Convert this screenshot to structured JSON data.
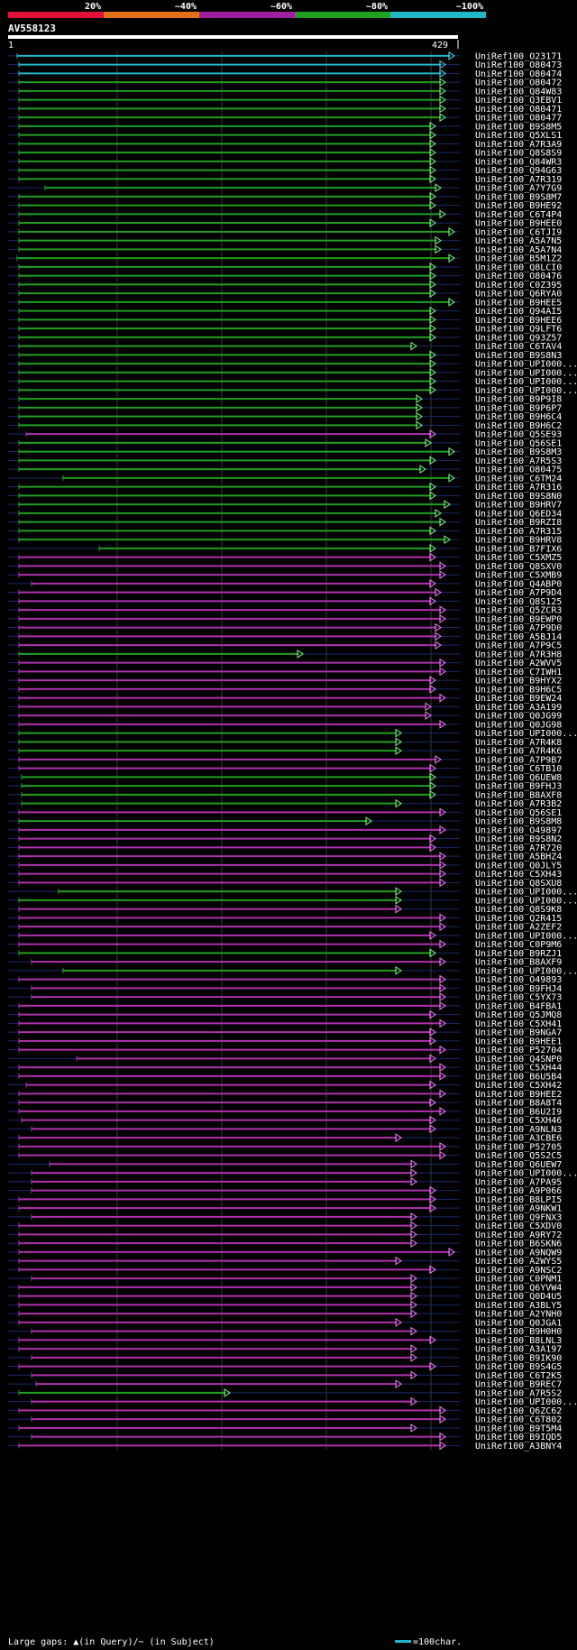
{
  "query": {
    "id": "AV558123",
    "start": "1",
    "end": "429",
    "length": 429
  },
  "chart_data": {
    "type": "alignment-overview",
    "identity_scale": {
      "labels": [
        "20%",
        "~40%",
        "~60%",
        "~80%",
        "~100%"
      ],
      "colors": [
        "#e0103a",
        "#e0701a",
        "#a020a0",
        "#20a020",
        "#20b8c8"
      ]
    },
    "legend": {
      "gaps_text": "Large gaps: ▲(in Query)/~ (in Subject)",
      "scale_text": "=100char.",
      "scale_color": "#20b8c8"
    },
    "hits": [
      {
        "id": "UniRef100_O23171",
        "s": 19,
        "e": 499,
        "c": "c"
      },
      {
        "id": "UniRef100_O80473",
        "s": 21,
        "e": 489,
        "c": "c"
      },
      {
        "id": "UniRef100_O80474",
        "s": 21,
        "e": 489,
        "c": "c"
      },
      {
        "id": "UniRef100_O80472",
        "s": 21,
        "e": 489,
        "c": "g"
      },
      {
        "id": "UniRef100_Q84W83",
        "s": 21,
        "e": 489,
        "c": "g"
      },
      {
        "id": "UniRef100_Q3EBV1",
        "s": 21,
        "e": 489,
        "c": "g"
      },
      {
        "id": "UniRef100_O80471",
        "s": 21,
        "e": 489,
        "c": "g"
      },
      {
        "id": "UniRef100_O80477",
        "s": 21,
        "e": 489,
        "c": "g"
      },
      {
        "id": "UniRef100_B9S8M5",
        "s": 21,
        "e": 478,
        "c": "g"
      },
      {
        "id": "UniRef100_Q5XLS1",
        "s": 21,
        "e": 478,
        "c": "g"
      },
      {
        "id": "UniRef100_A7R3A9",
        "s": 21,
        "e": 478,
        "c": "g"
      },
      {
        "id": "UniRef100_Q8S8S9",
        "s": 21,
        "e": 478,
        "c": "g"
      },
      {
        "id": "UniRef100_Q84WR3",
        "s": 21,
        "e": 478,
        "c": "g"
      },
      {
        "id": "UniRef100_Q94G63",
        "s": 21,
        "e": 478,
        "c": "g"
      },
      {
        "id": "UniRef100_A7R319",
        "s": 21,
        "e": 478,
        "c": "g"
      },
      {
        "id": "UniRef100_A7Y7G9",
        "s": 50,
        "e": 484,
        "c": "g"
      },
      {
        "id": "UniRef100_B9S8M7",
        "s": 21,
        "e": 478,
        "c": "g"
      },
      {
        "id": "UniRef100_B9HE92",
        "s": 21,
        "e": 478,
        "c": "g"
      },
      {
        "id": "UniRef100_C6T4P4",
        "s": 21,
        "e": 489,
        "c": "g"
      },
      {
        "id": "UniRef100_B9HEE0",
        "s": 21,
        "e": 478,
        "c": "g"
      },
      {
        "id": "UniRef100_C6TJI9",
        "s": 21,
        "e": 499,
        "c": "g"
      },
      {
        "id": "UniRef100_A5A7N5",
        "s": 21,
        "e": 484,
        "c": "g"
      },
      {
        "id": "UniRef100_A5A7N4",
        "s": 21,
        "e": 484,
        "c": "g"
      },
      {
        "id": "UniRef100_B5M1Z2",
        "s": 19,
        "e": 499,
        "c": "g"
      },
      {
        "id": "UniRef100_Q8LCI0",
        "s": 21,
        "e": 478,
        "c": "g"
      },
      {
        "id": "UniRef100_O80476",
        "s": 21,
        "e": 478,
        "c": "g"
      },
      {
        "id": "UniRef100_C0Z395",
        "s": 21,
        "e": 478,
        "c": "g"
      },
      {
        "id": "UniRef100_Q6RYA0",
        "s": 21,
        "e": 478,
        "c": "g"
      },
      {
        "id": "UniRef100_B9HEE5",
        "s": 21,
        "e": 499,
        "c": "g"
      },
      {
        "id": "UniRef100_Q94AI5",
        "s": 21,
        "e": 478,
        "c": "g"
      },
      {
        "id": "UniRef100_B9HEE6",
        "s": 21,
        "e": 478,
        "c": "g"
      },
      {
        "id": "UniRef100_Q9LFT6",
        "s": 21,
        "e": 478,
        "c": "g"
      },
      {
        "id": "UniRef100_Q93Z57",
        "s": 21,
        "e": 478,
        "c": "g"
      },
      {
        "id": "UniRef100_C6TAV4",
        "s": 21,
        "e": 457,
        "c": "g"
      },
      {
        "id": "UniRef100_B9S8N3",
        "s": 21,
        "e": 478,
        "c": "g"
      },
      {
        "id": "UniRef100_UPI000...",
        "s": 21,
        "e": 478,
        "c": "g"
      },
      {
        "id": "UniRef100_UPI000...",
        "s": 21,
        "e": 478,
        "c": "g"
      },
      {
        "id": "UniRef100_UPI000...",
        "s": 21,
        "e": 478,
        "c": "g"
      },
      {
        "id": "UniRef100_UPI000...",
        "s": 21,
        "e": 478,
        "c": "g"
      },
      {
        "id": "UniRef100_B9P9I8",
        "s": 21,
        "e": 463,
        "c": "g"
      },
      {
        "id": "UniRef100_B9P6P7",
        "s": 21,
        "e": 463,
        "c": "g"
      },
      {
        "id": "UniRef100_B9H6C4",
        "s": 21,
        "e": 463,
        "c": "g"
      },
      {
        "id": "UniRef100_B9H6C2",
        "s": 21,
        "e": 463,
        "c": "g"
      },
      {
        "id": "UniRef100_Q5SE93",
        "s": 29,
        "e": 478,
        "c": "p"
      },
      {
        "id": "UniRef100_Q56SE1",
        "s": 21,
        "e": 473,
        "c": "g"
      },
      {
        "id": "UniRef100_B9S8M3",
        "s": 21,
        "e": 499,
        "c": "g"
      },
      {
        "id": "UniRef100_A7R5S3",
        "s": 21,
        "e": 478,
        "c": "g"
      },
      {
        "id": "UniRef100_O80475",
        "s": 21,
        "e": 467,
        "c": "g"
      },
      {
        "id": "UniRef100_C6TM24",
        "s": 70,
        "e": 499,
        "c": "g"
      },
      {
        "id": "UniRef100_A7R316",
        "s": 21,
        "e": 478,
        "c": "g"
      },
      {
        "id": "UniRef100_B9S8N0",
        "s": 21,
        "e": 478,
        "c": "g"
      },
      {
        "id": "UniRef100_B9HRV7",
        "s": 21,
        "e": 494,
        "c": "g"
      },
      {
        "id": "UniRef100_Q6ED34",
        "s": 21,
        "e": 484,
        "c": "g"
      },
      {
        "id": "UniRef100_B9RZI8",
        "s": 21,
        "e": 489,
        "c": "g"
      },
      {
        "id": "UniRef100_A7R315",
        "s": 21,
        "e": 478,
        "c": "g"
      },
      {
        "id": "UniRef100_B9HRV8",
        "s": 21,
        "e": 494,
        "c": "g"
      },
      {
        "id": "UniRef100_B7FIX6",
        "s": 110,
        "e": 478,
        "c": "g"
      },
      {
        "id": "UniRef100_C5XMZ5",
        "s": 21,
        "e": 478,
        "c": "p"
      },
      {
        "id": "UniRef100_Q8SXV0",
        "s": 21,
        "e": 489,
        "c": "p"
      },
      {
        "id": "UniRef100_C5XMB9",
        "s": 21,
        "e": 489,
        "c": "p"
      },
      {
        "id": "UniRef100_Q4ABP0",
        "s": 35,
        "e": 478,
        "c": "p"
      },
      {
        "id": "UniRef100_A7P9D4",
        "s": 21,
        "e": 484,
        "c": "p"
      },
      {
        "id": "UniRef100_Q8S125",
        "s": 21,
        "e": 478,
        "c": "p"
      },
      {
        "id": "UniRef100_Q5ZCR3",
        "s": 21,
        "e": 489,
        "c": "p"
      },
      {
        "id": "UniRef100_B9EWP0",
        "s": 21,
        "e": 489,
        "c": "p"
      },
      {
        "id": "UniRef100_A7P9D0",
        "s": 21,
        "e": 484,
        "c": "p"
      },
      {
        "id": "UniRef100_A5BJ14",
        "s": 21,
        "e": 484,
        "c": "p"
      },
      {
        "id": "UniRef100_A7P9C5",
        "s": 21,
        "e": 484,
        "c": "p"
      },
      {
        "id": "UniRef100_A7R3H8",
        "s": 21,
        "e": 331,
        "c": "g"
      },
      {
        "id": "UniRef100_A2WVV5",
        "s": 21,
        "e": 489,
        "c": "p"
      },
      {
        "id": "UniRef100_C7IWH1",
        "s": 21,
        "e": 489,
        "c": "p"
      },
      {
        "id": "UniRef100_B9HYX2",
        "s": 21,
        "e": 478,
        "c": "p"
      },
      {
        "id": "UniRef100_B9H6C5",
        "s": 21,
        "e": 478,
        "c": "p"
      },
      {
        "id": "UniRef100_B9EW24",
        "s": 21,
        "e": 489,
        "c": "p"
      },
      {
        "id": "UniRef100_A3A199",
        "s": 21,
        "e": 473,
        "c": "p"
      },
      {
        "id": "UniRef100_Q0JG99",
        "s": 21,
        "e": 473,
        "c": "p"
      },
      {
        "id": "UniRef100_Q0JG98",
        "s": 21,
        "e": 489,
        "c": "p"
      },
      {
        "id": "UniRef100_UPI000...",
        "s": 21,
        "e": 440,
        "c": "g"
      },
      {
        "id": "UniRef100_A7R4K8",
        "s": 21,
        "e": 440,
        "c": "g"
      },
      {
        "id": "UniRef100_A7R4K6",
        "s": 21,
        "e": 440,
        "c": "g"
      },
      {
        "id": "UniRef100_A7P9B7",
        "s": 21,
        "e": 484,
        "c": "p"
      },
      {
        "id": "UniRef100_C6TB10",
        "s": 21,
        "e": 478,
        "c": "p"
      },
      {
        "id": "UniRef100_Q6UEW8",
        "s": 24,
        "e": 478,
        "c": "g"
      },
      {
        "id": "UniRef100_B9FHJ3",
        "s": 24,
        "e": 478,
        "c": "g"
      },
      {
        "id": "UniRef100_B8AXF8",
        "s": 24,
        "e": 478,
        "c": "g"
      },
      {
        "id": "UniRef100_A7R3B2",
        "s": 24,
        "e": 440,
        "c": "g"
      },
      {
        "id": "UniRef100_Q56SE1",
        "s": 21,
        "e": 489,
        "c": "p"
      },
      {
        "id": "UniRef100_B9S8M8",
        "s": 21,
        "e": 407,
        "c": "g"
      },
      {
        "id": "UniRef100_O49897",
        "s": 21,
        "e": 489,
        "c": "p"
      },
      {
        "id": "UniRef100_B9S8N2",
        "s": 21,
        "e": 478,
        "c": "p"
      },
      {
        "id": "UniRef100_A7R720",
        "s": 21,
        "e": 478,
        "c": "p"
      },
      {
        "id": "UniRef100_A5BHZ4",
        "s": 21,
        "e": 489,
        "c": "p"
      },
      {
        "id": "UniRef100_Q0JLY5",
        "s": 21,
        "e": 489,
        "c": "p"
      },
      {
        "id": "UniRef100_C5XH43",
        "s": 21,
        "e": 489,
        "c": "p"
      },
      {
        "id": "UniRef100_Q8SXU8",
        "s": 21,
        "e": 489,
        "c": "p"
      },
      {
        "id": "UniRef100_UPI000...",
        "s": 65,
        "e": 440,
        "c": "g"
      },
      {
        "id": "UniRef100_UPI000...",
        "s": 21,
        "e": 440,
        "c": "g"
      },
      {
        "id": "UniRef100_Q8S9K8",
        "s": 21,
        "e": 440,
        "c": "p"
      },
      {
        "id": "UniRef100_Q2R415",
        "s": 21,
        "e": 489,
        "c": "p"
      },
      {
        "id": "UniRef100_A2ZEF2",
        "s": 21,
        "e": 489,
        "c": "p"
      },
      {
        "id": "UniRef100_UPI000...",
        "s": 21,
        "e": 478,
        "c": "p"
      },
      {
        "id": "UniRef100_C0P9M6",
        "s": 21,
        "e": 489,
        "c": "p"
      },
      {
        "id": "UniRef100_B9RZJ1",
        "s": 21,
        "e": 478,
        "c": "g"
      },
      {
        "id": "UniRef100_B8AXF9",
        "s": 35,
        "e": 489,
        "c": "p"
      },
      {
        "id": "UniRef100_UPI000...",
        "s": 70,
        "e": 440,
        "c": "g"
      },
      {
        "id": "UniRef100_O49893",
        "s": 21,
        "e": 489,
        "c": "p"
      },
      {
        "id": "UniRef100_B9FHJ4",
        "s": 35,
        "e": 489,
        "c": "p"
      },
      {
        "id": "UniRef100_C5YX73",
        "s": 35,
        "e": 489,
        "c": "p"
      },
      {
        "id": "UniRef100_B4FBA1",
        "s": 21,
        "e": 489,
        "c": "p"
      },
      {
        "id": "UniRef100_Q5JMQ8",
        "s": 21,
        "e": 478,
        "c": "p"
      },
      {
        "id": "UniRef100_C5XH41",
        "s": 21,
        "e": 489,
        "c": "p"
      },
      {
        "id": "UniRef100_B9NGA7",
        "s": 21,
        "e": 478,
        "c": "p"
      },
      {
        "id": "UniRef100_B9HEE1",
        "s": 21,
        "e": 478,
        "c": "p"
      },
      {
        "id": "UniRef100_P52704",
        "s": 21,
        "e": 489,
        "c": "p"
      },
      {
        "id": "UniRef100_Q4SNP0",
        "s": 85,
        "e": 478,
        "c": "p"
      },
      {
        "id": "UniRef100_C5XH44",
        "s": 21,
        "e": 489,
        "c": "p"
      },
      {
        "id": "UniRef100_B6U5B4",
        "s": 21,
        "e": 489,
        "c": "p"
      },
      {
        "id": "UniRef100_C5XH42",
        "s": 29,
        "e": 478,
        "c": "p"
      },
      {
        "id": "UniRef100_B9HEE2",
        "s": 21,
        "e": 489,
        "c": "p"
      },
      {
        "id": "UniRef100_B8A8T4",
        "s": 21,
        "e": 478,
        "c": "p"
      },
      {
        "id": "UniRef100_B6U2I9",
        "s": 21,
        "e": 489,
        "c": "p"
      },
      {
        "id": "UniRef100_C5XH46",
        "s": 24,
        "e": 478,
        "c": "p"
      },
      {
        "id": "UniRef100_A9NLN3",
        "s": 35,
        "e": 478,
        "c": "p"
      },
      {
        "id": "UniRef100_A3CBE6",
        "s": 21,
        "e": 440,
        "c": "p"
      },
      {
        "id": "UniRef100_P52705",
        "s": 21,
        "e": 489,
        "c": "p"
      },
      {
        "id": "UniRef100_Q5S2C5",
        "s": 21,
        "e": 489,
        "c": "p"
      },
      {
        "id": "UniRef100_Q6UEW7",
        "s": 55,
        "e": 457,
        "c": "p"
      },
      {
        "id": "UniRef100_UPI000...",
        "s": 35,
        "e": 457,
        "c": "p"
      },
      {
        "id": "UniRef100_A7PA95",
        "s": 35,
        "e": 457,
        "c": "p"
      },
      {
        "id": "UniRef100_A9P066",
        "s": 35,
        "e": 478,
        "c": "p"
      },
      {
        "id": "UniRef100_B8LPI5",
        "s": 21,
        "e": 478,
        "c": "p"
      },
      {
        "id": "UniRef100_A9NKW1",
        "s": 21,
        "e": 478,
        "c": "p"
      },
      {
        "id": "UniRef100_Q9FNX3",
        "s": 35,
        "e": 457,
        "c": "p"
      },
      {
        "id": "UniRef100_C5XDV0",
        "s": 21,
        "e": 457,
        "c": "p"
      },
      {
        "id": "UniRef100_A9RY72",
        "s": 21,
        "e": 457,
        "c": "p"
      },
      {
        "id": "UniRef100_B6SKN6",
        "s": 21,
        "e": 457,
        "c": "p"
      },
      {
        "id": "UniRef100_A9NQW9",
        "s": 21,
        "e": 499,
        "c": "p"
      },
      {
        "id": "UniRef100_A2WYS5",
        "s": 21,
        "e": 440,
        "c": "p"
      },
      {
        "id": "UniRef100_A9NSC2",
        "s": 21,
        "e": 478,
        "c": "p"
      },
      {
        "id": "UniRef100_C0PNM1",
        "s": 35,
        "e": 457,
        "c": "p"
      },
      {
        "id": "UniRef100_Q6YVW4",
        "s": 21,
        "e": 457,
        "c": "p"
      },
      {
        "id": "UniRef100_Q0D4U5",
        "s": 21,
        "e": 457,
        "c": "p"
      },
      {
        "id": "UniRef100_A3BLY5",
        "s": 21,
        "e": 457,
        "c": "p"
      },
      {
        "id": "UniRef100_A2YNH0",
        "s": 21,
        "e": 457,
        "c": "p"
      },
      {
        "id": "UniRef100_Q0JGA1",
        "s": 21,
        "e": 440,
        "c": "p"
      },
      {
        "id": "UniRef100_B9H0H0",
        "s": 35,
        "e": 457,
        "c": "p"
      },
      {
        "id": "UniRef100_B8LNL3",
        "s": 21,
        "e": 478,
        "c": "p"
      },
      {
        "id": "UniRef100_A3A197",
        "s": 21,
        "e": 457,
        "c": "p"
      },
      {
        "id": "UniRef100_B9IK90",
        "s": 35,
        "e": 457,
        "c": "p"
      },
      {
        "id": "UniRef100_B9S4G5",
        "s": 21,
        "e": 478,
        "c": "p"
      },
      {
        "id": "UniRef100_C6T2K5",
        "s": 35,
        "e": 457,
        "c": "p"
      },
      {
        "id": "UniRef100_B9REC7",
        "s": 40,
        "e": 440,
        "c": "p"
      },
      {
        "id": "UniRef100_A7R5S2",
        "s": 21,
        "e": 250,
        "c": "g"
      },
      {
        "id": "UniRef100_UPI000...",
        "s": 35,
        "e": 457,
        "c": "p"
      },
      {
        "id": "UniRef100_Q6ZC62",
        "s": 21,
        "e": 489,
        "c": "p"
      },
      {
        "id": "UniRef100_C6T802",
        "s": 35,
        "e": 489,
        "c": "p"
      },
      {
        "id": "UniRef100_B9T5M4",
        "s": 21,
        "e": 457,
        "c": "p"
      },
      {
        "id": "UniRef100_B9IQD5",
        "s": 35,
        "e": 489,
        "c": "p"
      },
      {
        "id": "UniRef100_A3BNY4",
        "s": 21,
        "e": 489,
        "c": "p"
      }
    ]
  }
}
